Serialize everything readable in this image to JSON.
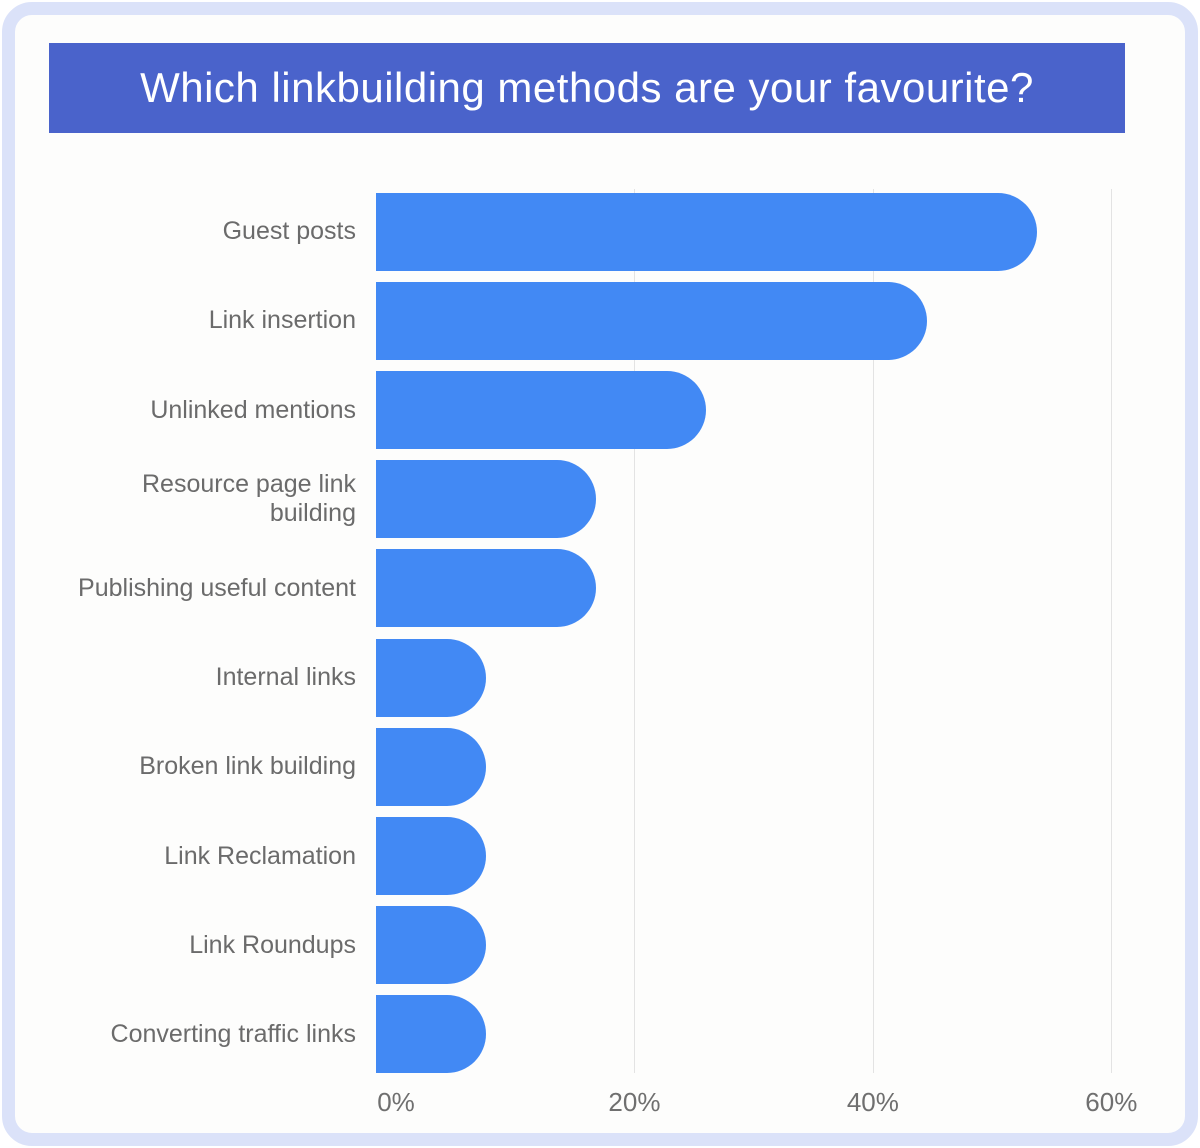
{
  "header": {
    "title": "Which linkbuilding methods are your favourite?"
  },
  "colors": {
    "frame_border": "#dbe2f9",
    "card_bg": "#fdfdfc",
    "banner_bg": "#4a63cb",
    "banner_text": "#ffffff",
    "bar": "#4289f4",
    "category_text": "#6b6b6b",
    "axis_text": "#6f6f6f",
    "gridline": "#e3e3e3"
  },
  "chart_data": {
    "type": "bar",
    "orientation": "horizontal",
    "title": "Which linkbuilding methods are your favourite?",
    "categories": [
      "Guest posts",
      "Link insertion",
      "Unlinked mentions",
      "Resource page link building",
      "Publishing useful content",
      "Internal links",
      "Broken link building",
      "Link Reclamation",
      "Link Roundups",
      "Converting traffic links"
    ],
    "values": [
      54,
      45,
      27,
      18,
      18,
      9,
      9,
      9,
      9,
      9
    ],
    "unit": "%",
    "xlabel": "",
    "ylabel": "",
    "x_ticks": [
      {
        "label": "0%",
        "value": 0
      },
      {
        "label": "20%",
        "value": 20
      },
      {
        "label": "40%",
        "value": 40
      },
      {
        "label": "60%",
        "value": 60
      }
    ],
    "xlim": [
      0,
      64
    ],
    "grid": "vertical",
    "legend": "none",
    "bar_shape": "pill-right"
  }
}
